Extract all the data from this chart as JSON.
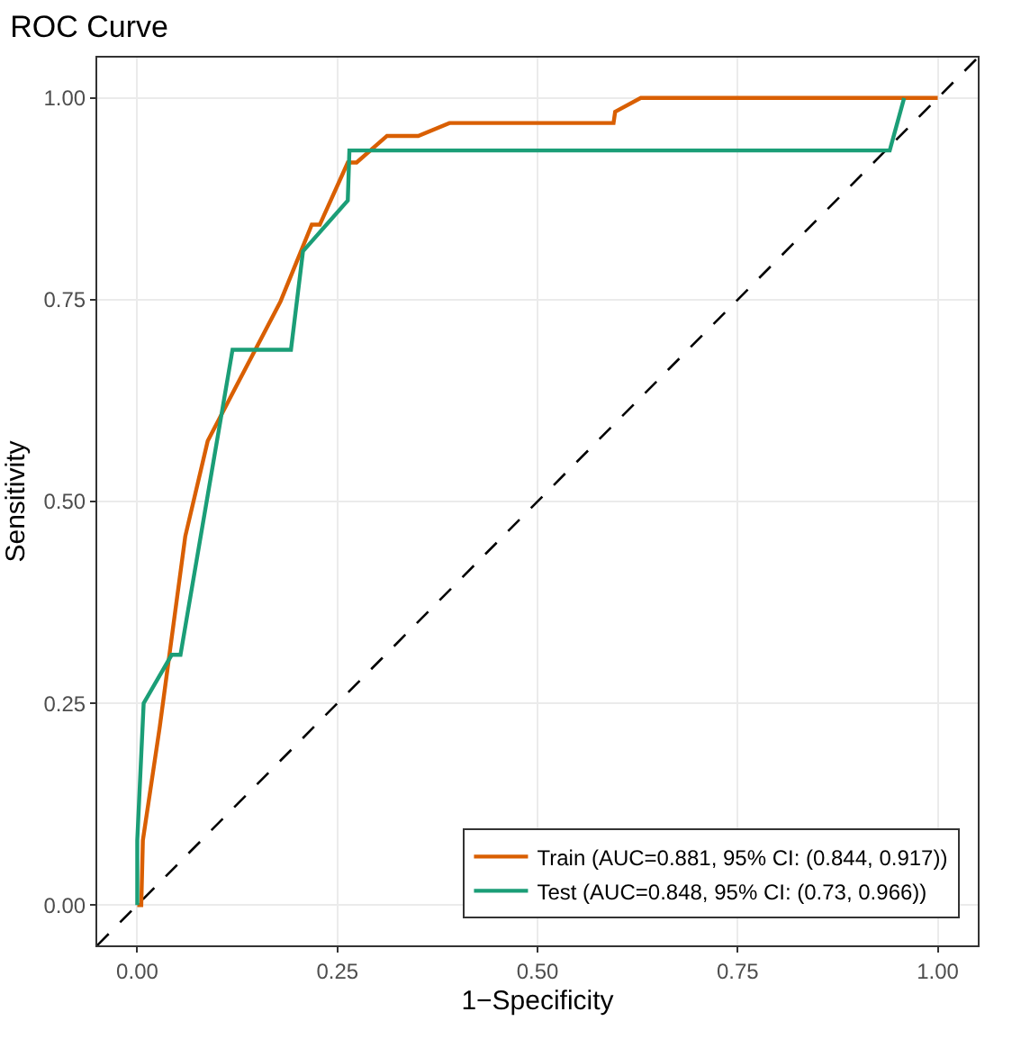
{
  "chart_data": {
    "type": "line",
    "title": "ROC Curve",
    "xlabel": "1−Specificity",
    "ylabel": "Sensitivity",
    "xlim": [
      -0.05,
      1.05
    ],
    "ylim": [
      -0.05,
      1.05
    ],
    "xticks": [
      {
        "value": 0,
        "label": "0.00"
      },
      {
        "value": 0.25,
        "label": "0.25"
      },
      {
        "value": 0.5,
        "label": "0.50"
      },
      {
        "value": 0.75,
        "label": "0.75"
      },
      {
        "value": 1,
        "label": "1.00"
      }
    ],
    "yticks": [
      {
        "value": 0,
        "label": "0.00"
      },
      {
        "value": 0.25,
        "label": "0.25"
      },
      {
        "value": 0.5,
        "label": "0.50"
      },
      {
        "value": 0.75,
        "label": "0.75"
      },
      {
        "value": 1,
        "label": "1.00"
      }
    ],
    "grid": true,
    "legend": "bottom right",
    "line_style": "solid",
    "series": [
      {
        "color": "#000000",
        "line_style": "dashed",
        "x": [
          -0.05,
          1.05
        ],
        "values": [
          -0.05,
          1.05
        ]
      },
      {
        "name": "Train (AUC=0.881, 95% CI: (0.844, 0.917))",
        "color": "#d95f02",
        "x": [
          0,
          0.005,
          0.007,
          0.028,
          0.06,
          0.088,
          0.179,
          0.218,
          0.228,
          0.263,
          0.274,
          0.312,
          0.351,
          0.39,
          0.595,
          0.597,
          0.629,
          1
        ],
        "values": [
          0,
          0,
          0.08,
          0.22,
          0.457,
          0.575,
          0.748,
          0.843,
          0.843,
          0.92,
          0.92,
          0.953,
          0.953,
          0.969,
          0.969,
          0.983,
          1,
          1
        ]
      },
      {
        "name": "Test (AUC=0.848, 95% CI: (0.73, 0.966))",
        "color": "#1b9e77",
        "x": [
          0,
          0,
          0.008,
          0.043,
          0.054,
          0.119,
          0.192,
          0.207,
          0.263,
          0.265,
          0.94,
          0.958
        ],
        "values": [
          0,
          0.08,
          0.25,
          0.31,
          0.31,
          0.688,
          0.688,
          0.81,
          0.873,
          0.935,
          0.935,
          1
        ]
      }
    ]
  }
}
